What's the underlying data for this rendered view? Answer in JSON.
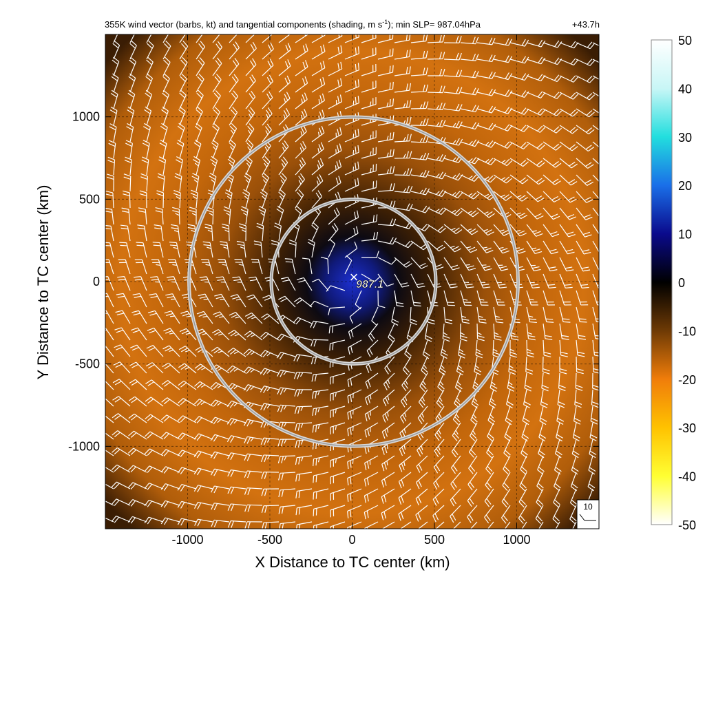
{
  "chart_data": {
    "type": "heatmap",
    "title_main": "355K wind vector (barbs, kt) and tangential components (shading, m s",
    "title_sup": "-1",
    "title_rest": "); min SLP= 987.04hPa",
    "time_label": "+43.7h",
    "xlabel": "X Distance to TC center (km)",
    "ylabel": "Y Distance to TC center (km)",
    "xlim": [
      -1500,
      1500
    ],
    "ylim": [
      -1500,
      1500
    ],
    "x_ticks": [
      -1000,
      -500,
      0,
      500,
      1000
    ],
    "y_ticks": [
      -1000,
      -500,
      0,
      500,
      1000
    ],
    "x_tick_labels": [
      "-1000",
      "-500",
      "0",
      "500",
      "1000"
    ],
    "y_tick_labels": [
      "-1000",
      "-500",
      "0",
      "500",
      "1000"
    ],
    "grid": true,
    "range_rings_km": [
      500,
      1000
    ],
    "center_marker": "×",
    "center_label": "987.1",
    "barb_reference": "10",
    "colorbar": {
      "ticks": [
        50,
        40,
        30,
        20,
        10,
        0,
        -10,
        -20,
        -30,
        -40,
        -50
      ],
      "tick_labels": [
        "50",
        "40",
        "30",
        "20",
        "10",
        "0",
        "-10",
        "-20",
        "-30",
        "-40",
        "-50"
      ],
      "colors": [
        "#ffffff",
        "#c8f6f6",
        "#22dede",
        "#1a6fe8",
        "#0a0a8c",
        "#000000",
        "#6e3a05",
        "#f07d0a",
        "#ffc200",
        "#ffff33",
        "#ffffff"
      ]
    },
    "field_description": {
      "core_value": 8,
      "max_value": -20,
      "max_radius_km": 1000,
      "outer_value": -8
    }
  }
}
